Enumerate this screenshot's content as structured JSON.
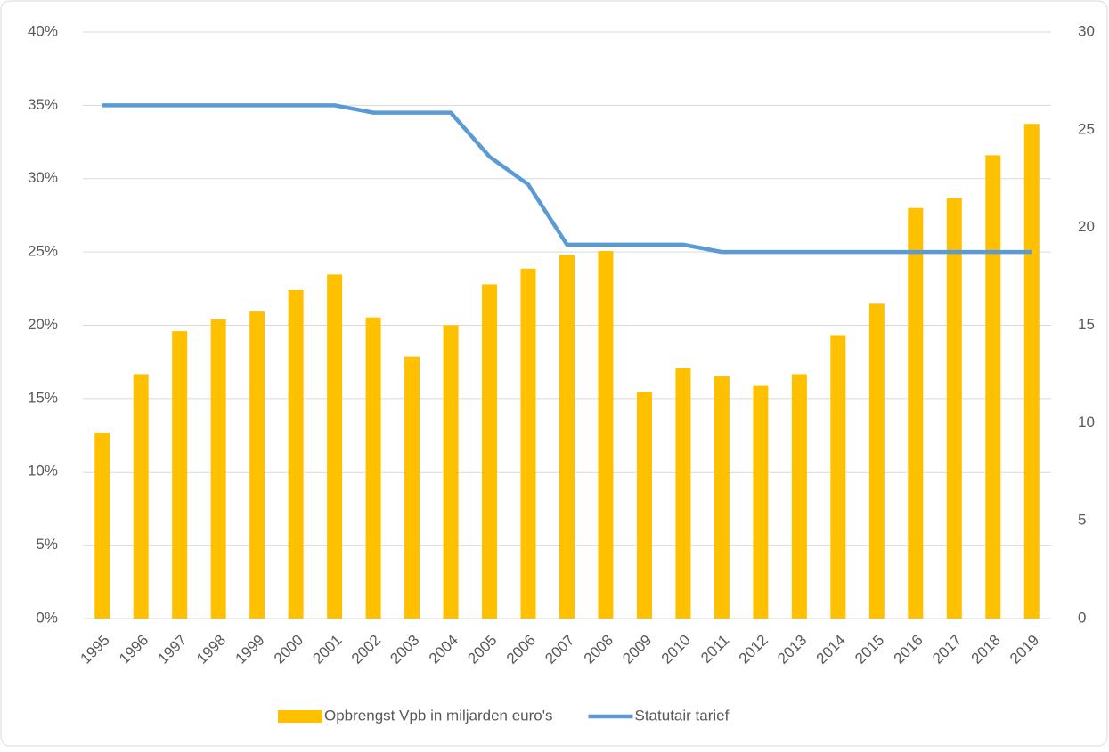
{
  "chart_data": {
    "type": "combo",
    "categories": [
      "1995",
      "1996",
      "1997",
      "1998",
      "1999",
      "2000",
      "2001",
      "2002",
      "2003",
      "2004",
      "2005",
      "2006",
      "2007",
      "2008",
      "2009",
      "2010",
      "2011",
      "2012",
      "2013",
      "2014",
      "2015",
      "2016",
      "2017",
      "2018",
      "2019"
    ],
    "series": [
      {
        "name": "Opbrengst Vpb in miljarden euro's",
        "type": "bar",
        "axis": "y2",
        "color": "#ffc000",
        "values": [
          9.5,
          12.5,
          14.7,
          15.3,
          15.7,
          16.8,
          17.6,
          15.4,
          13.4,
          15.0,
          17.1,
          17.9,
          18.6,
          18.8,
          11.6,
          12.8,
          12.4,
          11.9,
          12.5,
          14.5,
          16.1,
          21.0,
          21.5,
          23.7,
          25.3
        ]
      },
      {
        "name": "Statutair tarief",
        "type": "line",
        "color": "#5b9bd5",
        "values": [
          35,
          35,
          35,
          35,
          35,
          35,
          35,
          34.5,
          34.5,
          34.5,
          31.5,
          29.6,
          25.5,
          25.5,
          25.5,
          25.5,
          25,
          25,
          25,
          25,
          25,
          25,
          25,
          25,
          25
        ]
      }
    ],
    "ylim": [
      0,
      40
    ],
    "yticks": [
      {
        "value": 0,
        "label": "0%"
      },
      {
        "value": 5,
        "label": "5%"
      },
      {
        "value": 10,
        "label": "10%"
      },
      {
        "value": 15,
        "label": "15%"
      },
      {
        "value": 20,
        "label": "20%"
      },
      {
        "value": 25,
        "label": "25%"
      },
      {
        "value": 30,
        "label": "30%"
      },
      {
        "value": 35,
        "label": "35%"
      },
      {
        "value": 40,
        "label": "40%"
      }
    ],
    "y2lim": [
      0,
      30
    ],
    "y2ticks": [
      0,
      5,
      10,
      15,
      20,
      25,
      30
    ],
    "grid": true,
    "legend": "bottom"
  }
}
